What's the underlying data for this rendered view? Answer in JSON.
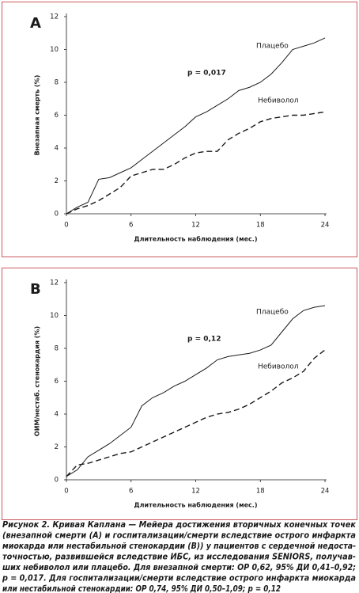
{
  "chart_data": [
    {
      "type": "line",
      "panel_label": "A",
      "ylabel": "Внезапная смерть (%)",
      "xlabel": "Длительность наблюдения (мес.)",
      "annotation": "p = 0,017",
      "x": [
        0,
        1,
        2,
        3,
        4,
        5,
        6,
        7,
        8,
        9,
        10,
        11,
        12,
        13,
        14,
        15,
        16,
        17,
        18,
        19,
        20,
        21,
        22,
        23,
        24
      ],
      "series": [
        {
          "name": "Плацебо",
          "color": "#1a1a1a",
          "dashed": false,
          "values": [
            0,
            0.4,
            0.7,
            2.1,
            2.2,
            2.5,
            2.8,
            3.3,
            3.8,
            4.3,
            4.8,
            5.3,
            5.9,
            6.2,
            6.6,
            7,
            7.5,
            7.7,
            8,
            8.5,
            9.2,
            10,
            10.2,
            10.4,
            10.7
          ]
        },
        {
          "name": "Небиволол",
          "color": "#1a1a1a",
          "dashed": true,
          "values": [
            0,
            0.3,
            0.5,
            0.8,
            1.2,
            1.6,
            2.3,
            2.5,
            2.7,
            2.7,
            3,
            3.4,
            3.7,
            3.8,
            3.8,
            4.5,
            4.9,
            5.2,
            5.6,
            5.8,
            5.9,
            6,
            6,
            6.1,
            6.2
          ]
        }
      ],
      "xlim": [
        0,
        24
      ],
      "ylim": [
        0,
        12
      ],
      "xticks": [
        0,
        6,
        12,
        18,
        24
      ],
      "yticks": [
        0,
        2,
        4,
        6,
        8,
        10,
        12
      ]
    },
    {
      "type": "line",
      "panel_label": "B",
      "ylabel": "ОИМ/нестаб. стенокардия (%)",
      "xlabel": "Длительность наблюдения (мес.)",
      "annotation": "p = 0,12",
      "x": [
        0,
        1,
        2,
        3,
        4,
        5,
        6,
        7,
        8,
        9,
        10,
        11,
        12,
        13,
        14,
        15,
        16,
        17,
        18,
        19,
        20,
        21,
        22,
        23,
        24
      ],
      "series": [
        {
          "name": "Плацебо",
          "color": "#1a1a1a",
          "dashed": false,
          "values": [
            0.2,
            0.6,
            1.4,
            1.8,
            2.2,
            2.7,
            3.2,
            4.5,
            5,
            5.3,
            5.7,
            6,
            6.4,
            6.8,
            7.3,
            7.5,
            7.6,
            7.7,
            7.9,
            8.2,
            9,
            9.8,
            10.3,
            10.5,
            10.6
          ]
        },
        {
          "name": "Небиволол",
          "color": "#1a1a1a",
          "dashed": true,
          "values": [
            0.2,
            0.9,
            1,
            1.2,
            1.4,
            1.6,
            1.7,
            2,
            2.3,
            2.6,
            2.9,
            3.2,
            3.5,
            3.8,
            4,
            4.1,
            4.3,
            4.6,
            5,
            5.4,
            5.9,
            6.2,
            6.6,
            7.4,
            7.9
          ]
        }
      ],
      "xlim": [
        0,
        24
      ],
      "ylim": [
        0,
        12
      ],
      "xticks": [
        0,
        6,
        12,
        18,
        24
      ],
      "yticks": [
        0,
        2,
        4,
        6,
        8,
        10,
        12
      ]
    }
  ],
  "caption": [
    "Рисунок 2. Кривая Каплана — Мейера достижения вторичных конечных точек",
    "(внезапной смерти (А) и госпитализации/смерти вследствие острого инфаркта",
    "миокарда или нестабильной стенокардии (B)) у пациентов с сердечной недоста-",
    "точностью, развившейся вследствие ИБС, из исследования SENIORS, получав-",
    "ших небиволол или плацебо. Для внезапной смерти: ОР 0,62, 95% ДИ 0,41–0,92;",
    "p = 0,017. Для госпитализации/смерти вследствие острого инфаркта миокарда",
    "или нестабильной стенокардии: ОР 0,74, 95% ДИ 0,50–1,09; p = 0,12"
  ]
}
